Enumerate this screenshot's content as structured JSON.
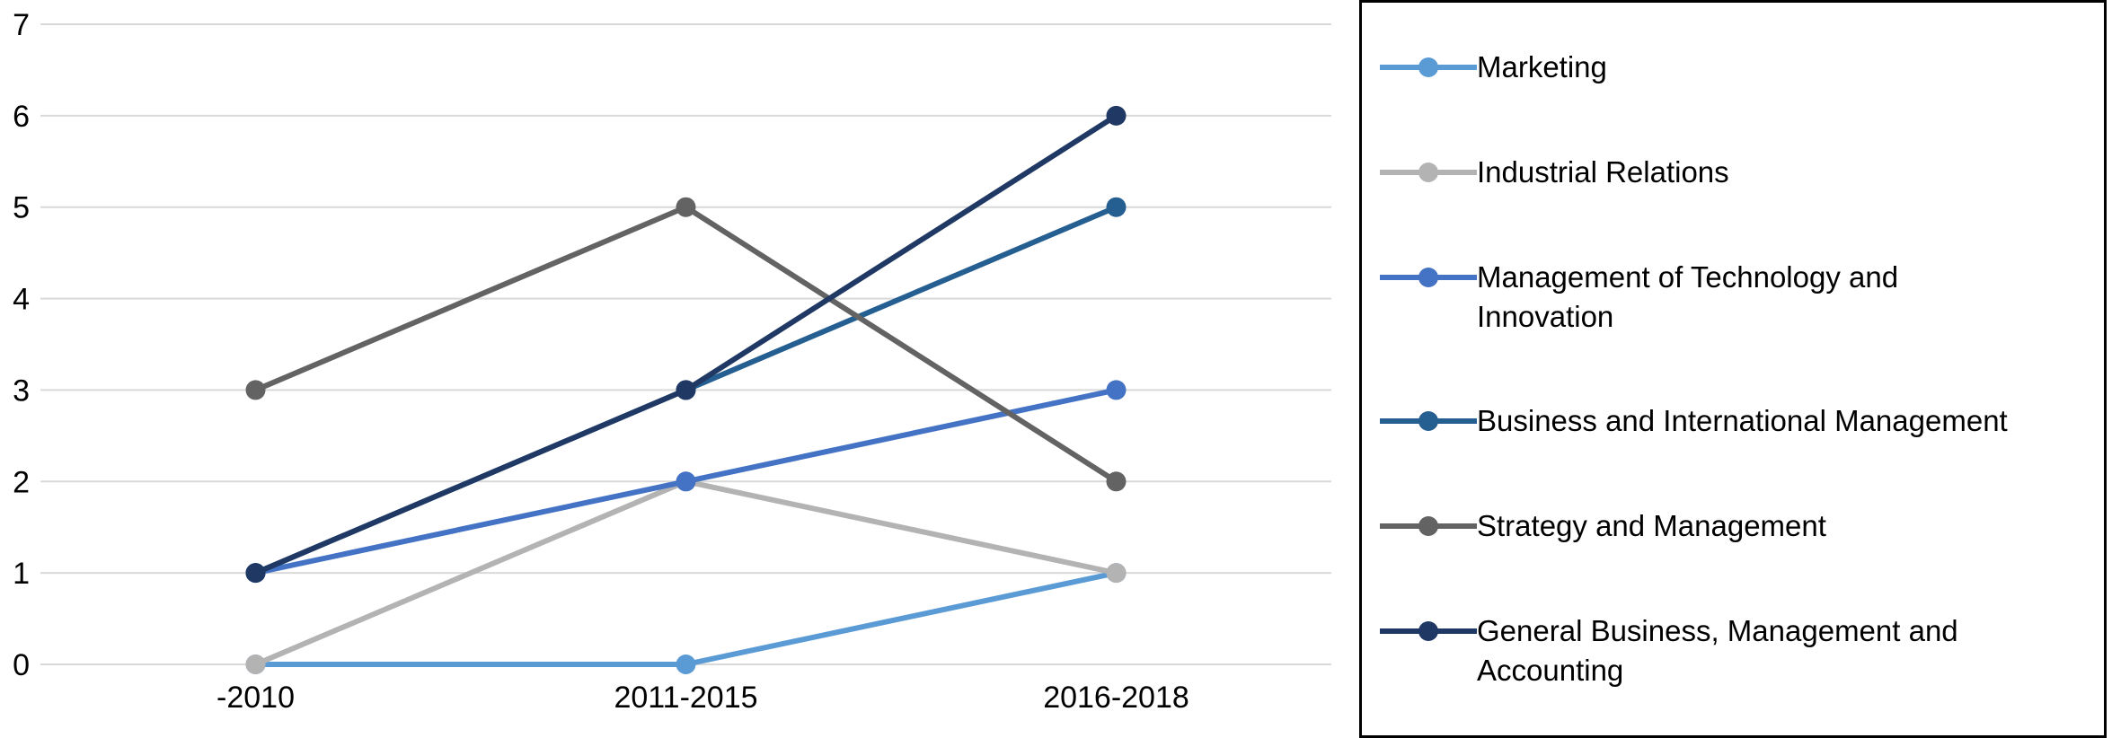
{
  "figure": {
    "background": "#FFFFFF",
    "legend_border_color": "#000000"
  },
  "chart_data": {
    "type": "line",
    "title": "",
    "xlabel": "",
    "ylabel": "",
    "categories": [
      "-2010",
      "2011-2015",
      "2016-2018"
    ],
    "series": [
      {
        "name": "Marketing",
        "color": "#5B9BD5",
        "values": [
          0,
          0,
          1
        ]
      },
      {
        "name": "Industrial Relations",
        "color": "#B3B3B3",
        "values": [
          0,
          2,
          1
        ]
      },
      {
        "name": "Management of Technology and Innovation",
        "color": "#4472C4",
        "values": [
          1,
          2,
          3
        ]
      },
      {
        "name": "Business and International Management",
        "color": "#255E91",
        "values": [
          1,
          3,
          5
        ]
      },
      {
        "name": "Strategy and Management",
        "color": "#636363",
        "values": [
          3,
          5,
          2
        ]
      },
      {
        "name": "General Business, Management and Accounting",
        "color": "#1F3864",
        "values": [
          1,
          3,
          6
        ]
      }
    ],
    "ylim": [
      0,
      7
    ],
    "yticks": [
      0,
      1,
      2,
      3,
      4,
      5,
      6,
      7
    ],
    "grid": true,
    "gridline_color": "#D9D9D9",
    "axis_text_color": "#000000",
    "legend_position": "right"
  }
}
